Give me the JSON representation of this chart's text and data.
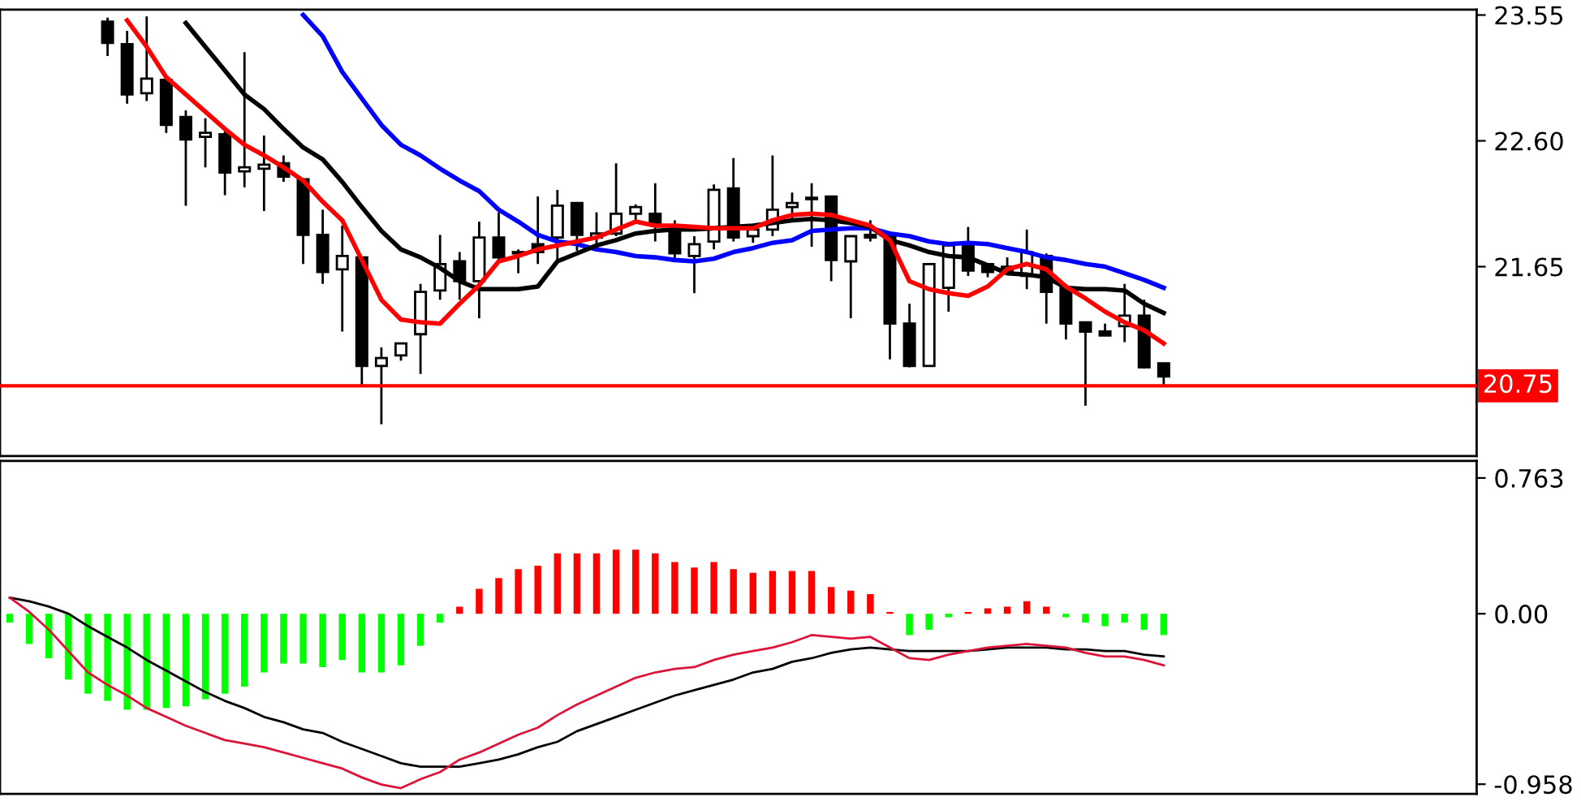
{
  "chart_data": [
    {
      "type": "candlestick",
      "tick_labels": "y",
      "color": "#000000",
      "categories": [
        null,
        null,
        null,
        null,
        null,
        null,
        null,
        null,
        null,
        null,
        null,
        null,
        null,
        null,
        null,
        null,
        null,
        null,
        null,
        null,
        null,
        null,
        null,
        null,
        null,
        null,
        null,
        null,
        null,
        null,
        null,
        null,
        null,
        null,
        null,
        null,
        null,
        null,
        null,
        null,
        null,
        null,
        null,
        null,
        null,
        null,
        null,
        null,
        null,
        null,
        null,
        null,
        null,
        null,
        null,
        null,
        null,
        null,
        null,
        null
      ],
      "ohlc": [
        null,
        null,
        null,
        null,
        null,
        [
          23.5,
          23.53,
          23.24,
          23.34
        ],
        [
          23.33,
          23.43,
          22.88,
          22.95
        ],
        [
          22.96,
          23.54,
          22.9,
          23.07
        ],
        [
          23.06,
          23.08,
          22.66,
          22.72
        ],
        [
          22.78,
          22.83,
          22.11,
          22.61
        ],
        [
          22.63,
          22.77,
          22.4,
          22.66
        ],
        [
          22.65,
          22.67,
          22.19,
          22.36
        ],
        [
          22.37,
          23.27,
          22.25,
          22.4
        ],
        [
          22.39,
          22.64,
          22.07,
          22.42
        ],
        [
          22.43,
          22.49,
          22.29,
          22.33
        ],
        [
          22.31,
          22.31,
          21.67,
          21.89
        ],
        [
          21.89,
          22.08,
          21.52,
          21.61
        ],
        [
          21.63,
          21.96,
          21.16,
          21.73
        ],
        [
          21.72,
          21.72,
          20.76,
          20.9
        ],
        [
          20.9,
          21.04,
          20.46,
          20.96
        ],
        [
          20.98,
          21.07,
          20.94,
          21.07
        ],
        [
          21.14,
          21.52,
          20.84,
          21.46
        ],
        [
          21.47,
          21.89,
          21.4,
          21.67
        ],
        [
          21.69,
          21.76,
          21.4,
          21.54
        ],
        [
          21.54,
          21.99,
          21.26,
          21.87
        ],
        [
          21.87,
          22.06,
          21.69,
          21.72
        ],
        [
          21.76,
          21.78,
          21.6,
          21.75
        ],
        [
          21.82,
          22.18,
          21.67,
          21.76
        ],
        [
          21.87,
          22.23,
          21.69,
          22.11
        ],
        [
          22.13,
          22.13,
          21.77,
          21.89
        ],
        [
          21.87,
          22.06,
          21.78,
          21.9
        ],
        [
          21.9,
          22.43,
          21.88,
          22.05
        ],
        [
          22.05,
          22.12,
          21.99,
          22.1
        ],
        [
          22.05,
          22.28,
          21.84,
          21.98
        ],
        [
          21.94,
          22.0,
          21.7,
          21.75
        ],
        [
          21.73,
          21.88,
          21.45,
          21.82
        ],
        [
          21.84,
          22.27,
          21.78,
          22.23
        ],
        [
          22.24,
          22.47,
          21.84,
          21.87
        ],
        [
          21.88,
          21.94,
          21.83,
          21.93
        ],
        [
          21.93,
          22.49,
          21.88,
          22.08
        ],
        [
          22.1,
          22.21,
          22.0,
          22.13
        ],
        [
          22.17,
          22.28,
          21.8,
          22.16
        ],
        [
          22.18,
          22.18,
          21.54,
          21.7
        ],
        [
          21.69,
          21.88,
          21.26,
          21.88
        ],
        [
          21.89,
          22.0,
          21.84,
          21.87
        ],
        [
          21.88,
          21.88,
          20.95,
          21.22
        ],
        [
          21.22,
          21.37,
          20.89,
          20.9
        ],
        [
          20.9,
          21.67,
          20.9,
          21.67
        ],
        [
          21.49,
          21.82,
          21.31,
          21.81
        ],
        [
          21.82,
          21.95,
          21.58,
          21.62
        ],
        [
          21.67,
          21.67,
          21.57,
          21.61
        ],
        [
          21.65,
          21.72,
          21.59,
          21.62
        ],
        [
          21.58,
          21.93,
          21.48,
          21.76
        ],
        [
          21.73,
          21.75,
          21.22,
          21.46
        ],
        [
          21.49,
          21.52,
          21.1,
          21.22
        ],
        [
          21.23,
          21.23,
          20.6,
          21.16
        ],
        [
          21.16,
          21.22,
          21.13,
          21.13
        ],
        [
          21.2,
          21.52,
          21.08,
          21.28
        ],
        [
          21.28,
          21.4,
          20.88,
          20.89
        ],
        [
          20.92,
          20.92,
          20.76,
          20.82
        ]
      ],
      "series": [
        {
          "type": "line",
          "color": "#0000ff",
          "values": [
            null,
            null,
            null,
            null,
            null,
            null,
            null,
            null,
            null,
            null,
            null,
            null,
            null,
            null,
            null,
            23.55,
            23.39,
            23.12,
            22.92,
            22.72,
            22.57,
            22.49,
            22.39,
            22.3,
            22.22,
            22.08,
            21.99,
            21.89,
            21.84,
            21.82,
            21.78,
            21.76,
            21.73,
            21.72,
            21.7,
            21.69,
            21.71,
            21.76,
            21.79,
            21.83,
            21.85,
            21.92,
            21.93,
            21.94,
            21.94,
            21.9,
            21.88,
            21.84,
            21.82,
            21.83,
            21.82,
            21.79,
            21.76,
            21.72,
            21.7,
            21.67,
            21.65,
            21.6,
            21.55,
            21.49
          ]
        },
        {
          "type": "line",
          "color": "#000000",
          "values": [
            null,
            null,
            null,
            null,
            null,
            null,
            null,
            null,
            null,
            23.49,
            23.31,
            23.13,
            22.95,
            22.84,
            22.69,
            22.55,
            22.46,
            22.29,
            22.1,
            21.92,
            21.78,
            21.72,
            21.64,
            21.54,
            21.48,
            21.48,
            21.48,
            21.5,
            21.69,
            21.75,
            21.81,
            21.85,
            21.9,
            21.92,
            21.93,
            21.93,
            21.94,
            21.95,
            21.96,
            21.98,
            22.0,
            22.01,
            22.0,
            21.98,
            21.95,
            21.85,
            21.81,
            21.76,
            21.73,
            21.72,
            21.66,
            21.6,
            21.59,
            21.57,
            21.49,
            21.48,
            21.48,
            21.47,
            21.37,
            21.3
          ]
        },
        {
          "type": "line",
          "color": "#ff0000",
          "values": [
            null,
            null,
            null,
            null,
            null,
            null,
            23.51,
            23.31,
            23.08,
            22.95,
            22.82,
            22.69,
            22.57,
            22.49,
            22.4,
            22.3,
            22.14,
            22.0,
            21.7,
            21.4,
            21.25,
            21.23,
            21.22,
            21.37,
            21.51,
            21.69,
            21.73,
            21.78,
            21.81,
            21.84,
            21.87,
            21.93,
            21.99,
            21.96,
            21.96,
            21.95,
            21.94,
            21.94,
            21.94,
            22.0,
            22.04,
            22.05,
            22.04,
            22.0,
            21.96,
            21.85,
            21.54,
            21.48,
            21.45,
            21.43,
            21.5,
            21.63,
            21.67,
            21.63,
            21.5,
            21.41,
            21.31,
            21.23,
            21.17,
            21.07
          ]
        }
      ],
      "ylim": [
        20.22,
        23.59
      ],
      "yticks": [
        23.55,
        {
          "value": 22.6,
          "label": "22.60"
        },
        21.65
      ],
      "ref_lines": [
        {
          "axis": "y",
          "value": 20.75,
          "label": "20.75",
          "color": "#ff0000"
        }
      ]
    },
    {
      "type": "bar",
      "tick_labels": "y",
      "categories": [
        null,
        null,
        null,
        null,
        null,
        null,
        null,
        null,
        null,
        null,
        null,
        null,
        null,
        null,
        null,
        null,
        null,
        null,
        null,
        null,
        null,
        null,
        null,
        null,
        null,
        null,
        null,
        null,
        null,
        null,
        null,
        null,
        null,
        null,
        null,
        null,
        null,
        null,
        null,
        null,
        null,
        null,
        null,
        null,
        null,
        null,
        null,
        null,
        null,
        null,
        null,
        null,
        null,
        null,
        null,
        null,
        null,
        null,
        null,
        null
      ],
      "series": [
        {
          "type": "bar",
          "colors": [
            "#00ff00",
            "#00ff00",
            "#00ff00",
            "#00ff00",
            "#00ff00",
            "#00ff00",
            "#00ff00",
            "#00ff00",
            "#00ff00",
            "#00ff00",
            "#00ff00",
            "#00ff00",
            "#00ff00",
            "#00ff00",
            "#00ff00",
            "#00ff00",
            "#00ff00",
            "#00ff00",
            "#00ff00",
            "#00ff00",
            "#00ff00",
            "#00ff00",
            "#00ff00",
            "#ff0000",
            "#ff0000",
            "#ff0000",
            "#ff0000",
            "#ff0000",
            "#ff0000",
            "#ff0000",
            "#ff0000",
            "#ff0000",
            "#ff0000",
            "#ff0000",
            "#ff0000",
            "#ff0000",
            "#ff0000",
            "#ff0000",
            "#ff0000",
            "#ff0000",
            "#ff0000",
            "#ff0000",
            "#ff0000",
            "#ff0000",
            "#ff0000",
            "#ff0000",
            "#00ff00",
            "#00ff00",
            "#00ff00",
            "#ff0000",
            "#ff0000",
            "#ff0000",
            "#ff0000",
            "#ff0000",
            "#00ff00",
            "#00ff00",
            "#00ff00",
            "#00ff00",
            "#00ff00",
            "#00ff00"
          ],
          "values": [
            -0.05,
            -0.17,
            -0.25,
            -0.37,
            -0.45,
            -0.49,
            -0.54,
            -0.54,
            -0.53,
            -0.52,
            -0.48,
            -0.45,
            -0.41,
            -0.33,
            -0.28,
            -0.28,
            -0.3,
            -0.26,
            -0.33,
            -0.33,
            -0.29,
            -0.18,
            -0.05,
            0.04,
            0.14,
            0.2,
            0.25,
            0.27,
            0.34,
            0.34,
            0.34,
            0.36,
            0.36,
            0.34,
            0.29,
            0.26,
            0.29,
            0.25,
            0.23,
            0.24,
            0.24,
            0.24,
            0.15,
            0.13,
            0.11,
            0.01,
            -0.12,
            -0.09,
            -0.02,
            0.01,
            0.03,
            0.04,
            0.07,
            0.04,
            -0.02,
            -0.05,
            -0.07,
            -0.05,
            -0.09,
            -0.12
          ]
        },
        {
          "type": "line",
          "color": "#000000",
          "values": [
            0.09,
            0.07,
            0.04,
            0.0,
            -0.07,
            -0.13,
            -0.19,
            -0.26,
            -0.32,
            -0.38,
            -0.44,
            -0.49,
            -0.53,
            -0.58,
            -0.61,
            -0.65,
            -0.67,
            -0.72,
            -0.76,
            -0.8,
            -0.84,
            -0.86,
            -0.86,
            -0.86,
            -0.84,
            -0.82,
            -0.79,
            -0.75,
            -0.72,
            -0.66,
            -0.62,
            -0.58,
            -0.54,
            -0.5,
            -0.46,
            -0.43,
            -0.4,
            -0.37,
            -0.33,
            -0.31,
            -0.27,
            -0.25,
            -0.22,
            -0.2,
            -0.19,
            -0.2,
            -0.21,
            -0.21,
            -0.21,
            -0.21,
            -0.2,
            -0.19,
            -0.19,
            -0.19,
            -0.2,
            -0.2,
            -0.21,
            -0.21,
            -0.23,
            -0.24
          ]
        },
        {
          "type": "line",
          "color": "#dc143c",
          "values": [
            0.09,
            0.01,
            -0.09,
            -0.21,
            -0.33,
            -0.4,
            -0.46,
            -0.53,
            -0.58,
            -0.63,
            -0.67,
            -0.71,
            -0.73,
            -0.75,
            -0.78,
            -0.81,
            -0.84,
            -0.87,
            -0.92,
            -0.96,
            -0.98,
            -0.93,
            -0.89,
            -0.82,
            -0.78,
            -0.73,
            -0.68,
            -0.64,
            -0.57,
            -0.51,
            -0.46,
            -0.41,
            -0.36,
            -0.33,
            -0.31,
            -0.3,
            -0.26,
            -0.23,
            -0.21,
            -0.19,
            -0.16,
            -0.12,
            -0.13,
            -0.14,
            -0.13,
            -0.19,
            -0.25,
            -0.26,
            -0.23,
            -0.21,
            -0.19,
            -0.18,
            -0.17,
            -0.18,
            -0.19,
            -0.22,
            -0.24,
            -0.24,
            -0.26,
            -0.29
          ]
        }
      ],
      "ylim": [
        -1.012,
        0.859
      ],
      "yticks": [
        0.763,
        {
          "value": 0,
          "label": "0.00"
        },
        {
          "value": -0.958,
          "label": "-0.958"
        }
      ]
    }
  ]
}
